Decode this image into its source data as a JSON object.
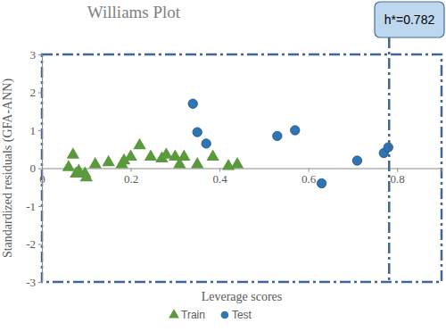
{
  "chart_data": {
    "type": "scatter",
    "title": "Williams Plot",
    "x_label": "Leverage scores",
    "y_label": "Standardized residuals (GFA-ANN)",
    "xlim": [
      0,
      0.9
    ],
    "xticks": [
      0,
      0.2,
      0.4,
      0.6,
      0.8
    ],
    "ylim": [
      -3,
      3
    ],
    "yticks": [
      -3,
      -2,
      -1,
      0,
      1,
      2,
      3
    ],
    "grid": false,
    "legend": "bottom",
    "annotations": [
      {
        "label": "h*=0.782",
        "x": 0.782
      }
    ],
    "series": [
      {
        "name": "Train",
        "color": "#5b9a3c",
        "marker": "triangle",
        "x": [
          0.06,
          0.07,
          0.077,
          0.083,
          0.097,
          0.1,
          0.12,
          0.15,
          0.18,
          0.185,
          0.2,
          0.22,
          0.245,
          0.27,
          0.28,
          0.3,
          0.31,
          0.32,
          0.35,
          0.385,
          0.42,
          0.44
        ],
        "values": [
          0.02,
          0.35,
          -0.15,
          -0.08,
          -0.15,
          -0.25,
          0.1,
          0.15,
          0.1,
          0.2,
          0.3,
          0.6,
          0.3,
          0.25,
          0.35,
          0.3,
          0.1,
          0.3,
          0.1,
          0.3,
          0.05,
          0.1
        ]
      },
      {
        "name": "Test",
        "color": "#2e75b6",
        "marker": "circle",
        "x": [
          0.34,
          0.35,
          0.37,
          0.53,
          0.57,
          0.63,
          0.71,
          0.77,
          0.78
        ],
        "values": [
          1.7,
          0.95,
          0.65,
          0.85,
          1.0,
          -0.4,
          0.2,
          0.4,
          0.55
        ]
      }
    ]
  }
}
